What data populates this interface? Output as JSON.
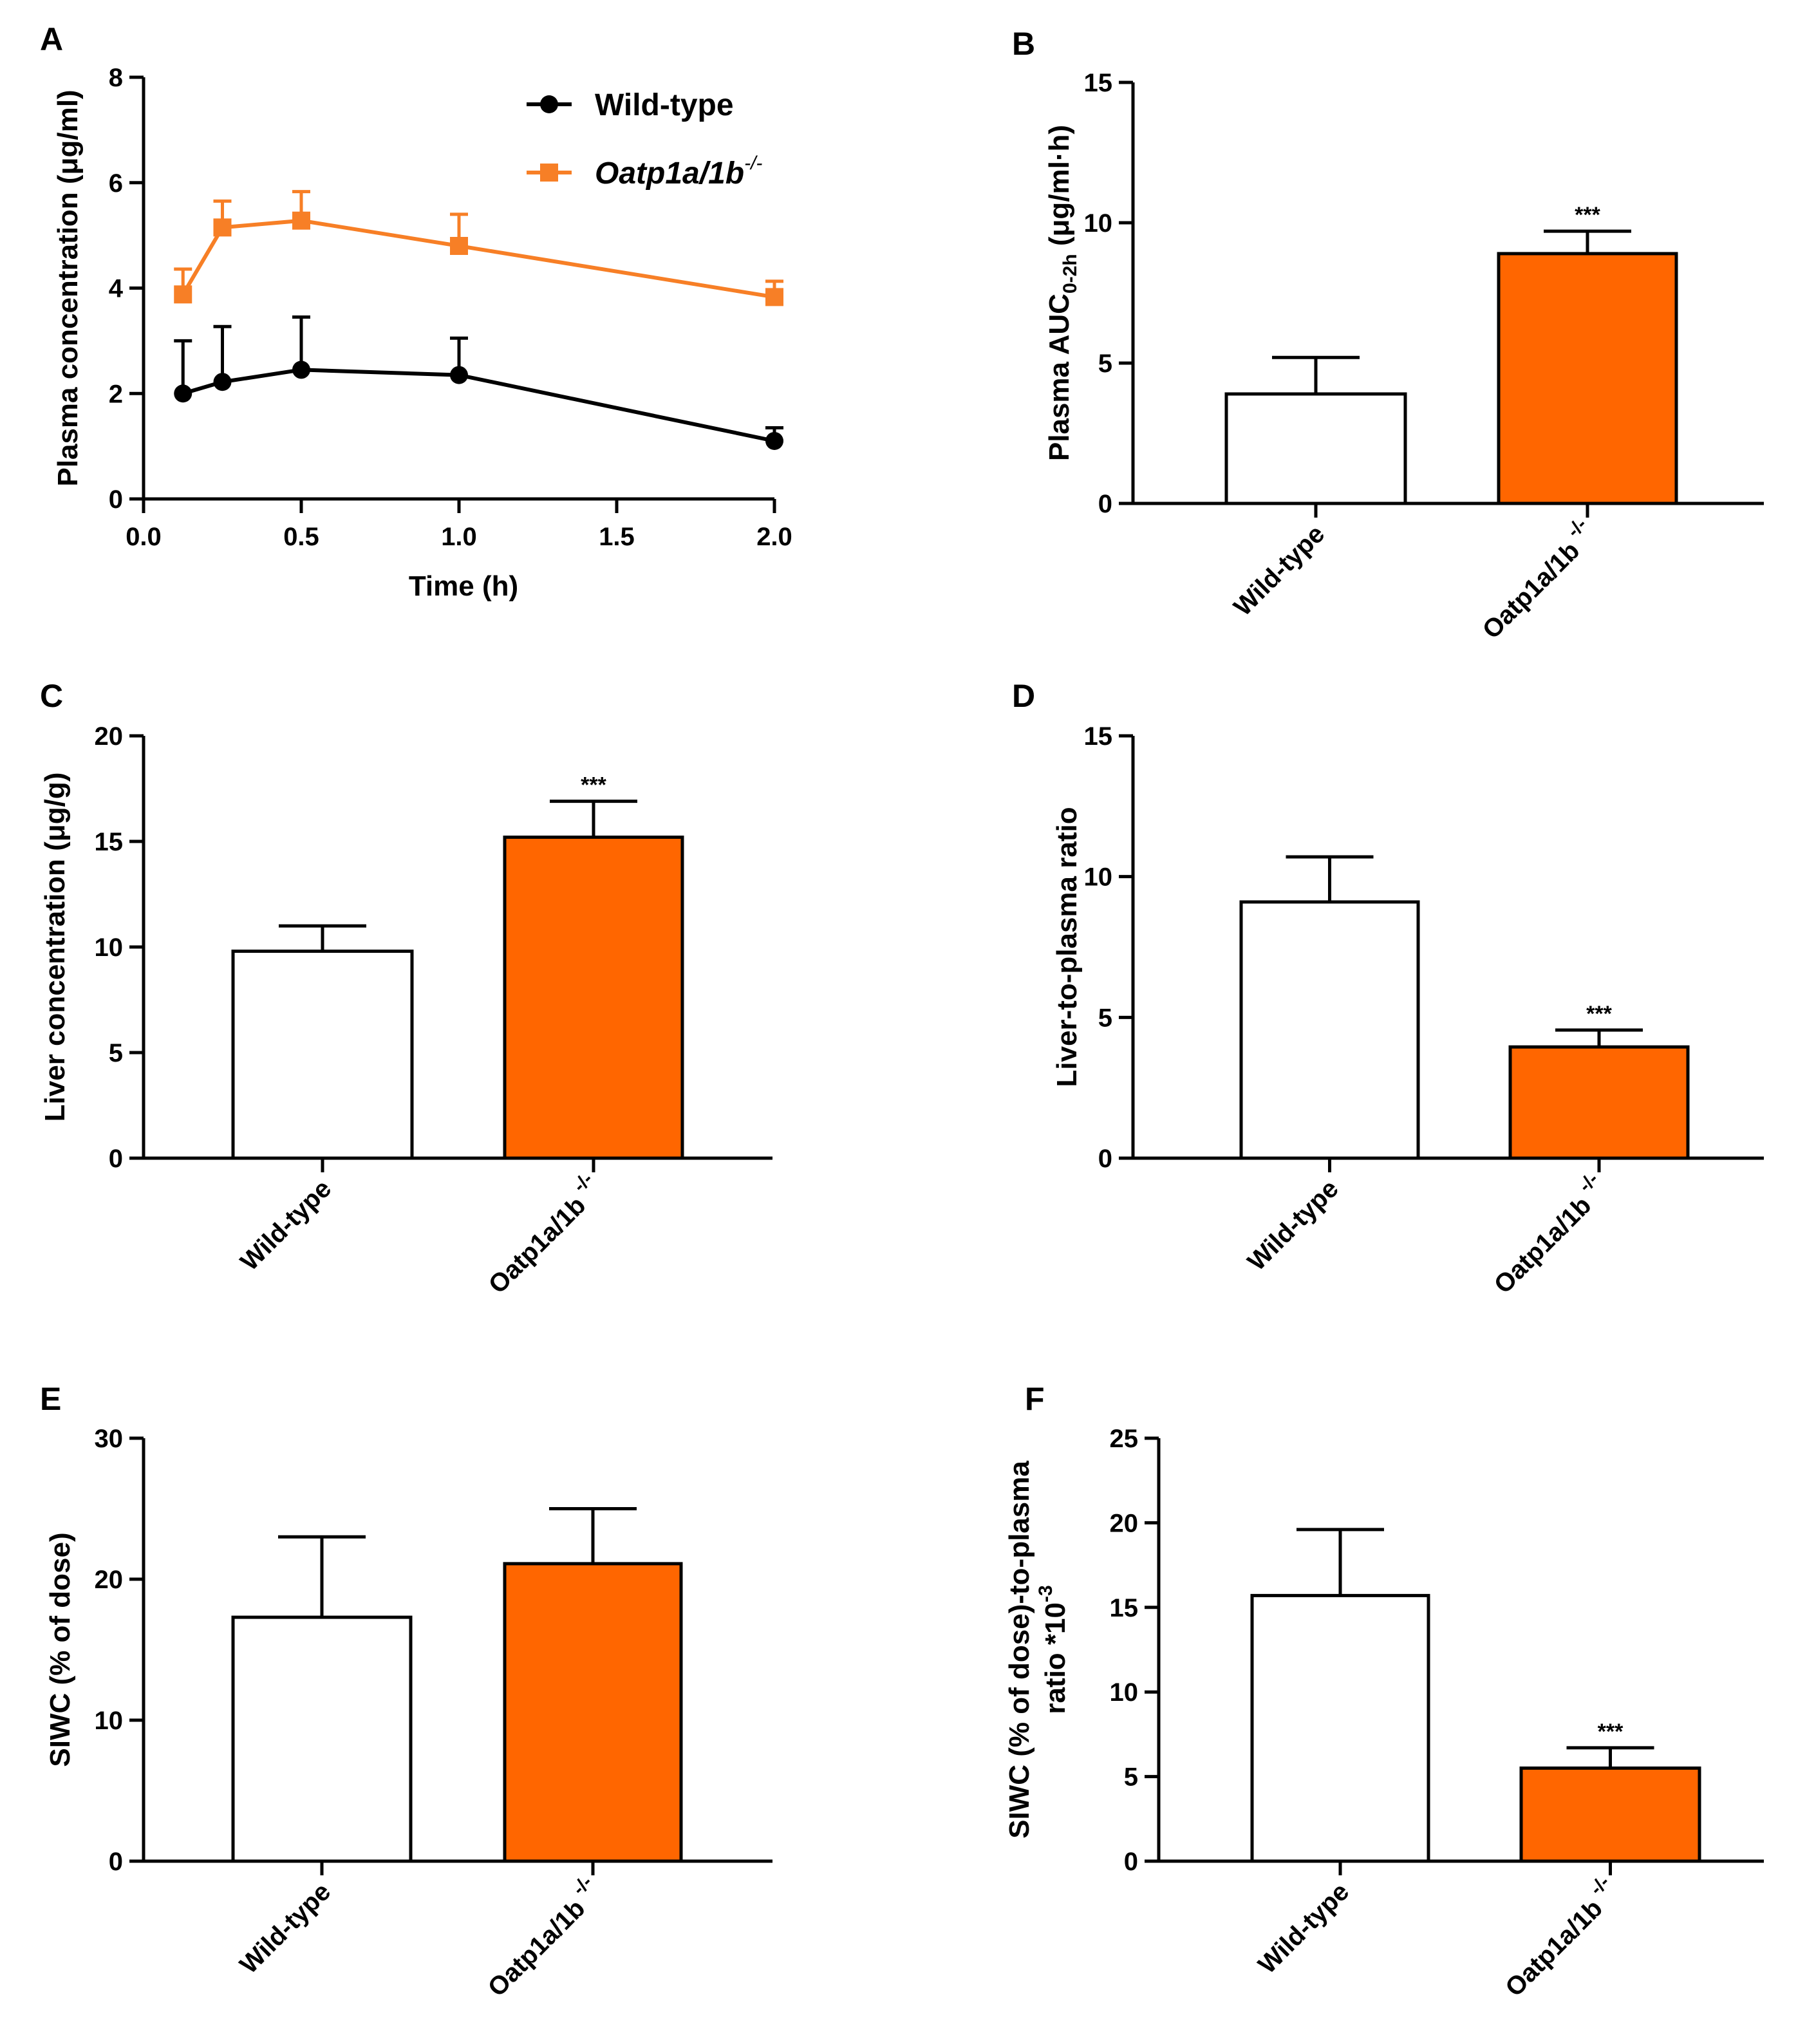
{
  "colors": {
    "orange": "#F77F26",
    "bar_orange": "#FF6600",
    "black": "#000000",
    "white": "#FFFFFF"
  },
  "chart_data": [
    {
      "id": "A",
      "panel_label": "A",
      "type": "line",
      "xlabel": "Time (h)",
      "ylabel": "Plasma concentration (μg/ml)",
      "xlim": [
        0,
        2.0
      ],
      "ylim": [
        0,
        8
      ],
      "xticks": [
        {
          "value": 0,
          "label": "0.0"
        },
        {
          "value": 0.5,
          "label": "0.5"
        },
        {
          "value": 1.0,
          "label": "1.0"
        },
        {
          "value": 1.5,
          "label": "1.5"
        },
        {
          "value": 2.0,
          "label": "2.0"
        }
      ],
      "yticks": [
        {
          "value": 0,
          "label": "0"
        },
        {
          "value": 2,
          "label": "2"
        },
        {
          "value": 4,
          "label": "4"
        },
        {
          "value": 6,
          "label": "6"
        },
        {
          "value": 8,
          "label": "8"
        }
      ],
      "x": [
        0.125,
        0.25,
        0.5,
        1.0,
        2.0
      ],
      "series": [
        {
          "name": "Wild-type",
          "name_italic": false,
          "name_sup": "",
          "color": "#000000",
          "marker": "circle",
          "values": [
            2.0,
            2.22,
            2.45,
            2.35,
            1.1
          ],
          "errors": [
            1.0,
            1.05,
            1.0,
            0.7,
            0.25
          ]
        },
        {
          "name": "Oatp1a/1b",
          "name_italic": true,
          "name_sup": "-/-",
          "color": "#F77F26",
          "marker": "square",
          "values": [
            3.88,
            5.15,
            5.28,
            4.8,
            3.83
          ],
          "errors": [
            0.48,
            0.5,
            0.55,
            0.6,
            0.3
          ]
        }
      ]
    },
    {
      "id": "B",
      "panel_label": "B",
      "type": "bar",
      "ylabel_pre": "Plasma AUC",
      "ylabel_sub": "0-2h",
      "ylabel_post": " (μg/ml·h)",
      "ylim": [
        0,
        15
      ],
      "yticks": [
        {
          "value": 0,
          "label": "0"
        },
        {
          "value": 5,
          "label": "5"
        },
        {
          "value": 10,
          "label": "10"
        },
        {
          "value": 15,
          "label": "15"
        }
      ],
      "categories": [
        {
          "label": "Wild-type",
          "sup": ""
        },
        {
          "label": "Oatp1a/1b",
          "sup": "-/-"
        }
      ],
      "values": [
        3.9,
        8.9
      ],
      "errors": [
        1.3,
        0.8
      ],
      "significance": [
        "",
        "***"
      ],
      "fills": [
        "#FFFFFF",
        "#FF6600"
      ]
    },
    {
      "id": "C",
      "panel_label": "C",
      "type": "bar",
      "ylabel_pre": "Liver concentration (μg/g)",
      "ylabel_sub": "",
      "ylabel_post": "",
      "ylim": [
        0,
        20
      ],
      "yticks": [
        {
          "value": 0,
          "label": "0"
        },
        {
          "value": 5,
          "label": "5"
        },
        {
          "value": 10,
          "label": "10"
        },
        {
          "value": 15,
          "label": "15"
        },
        {
          "value": 20,
          "label": "20"
        }
      ],
      "categories": [
        {
          "label": "Wild-type",
          "sup": ""
        },
        {
          "label": "Oatp1a/1b",
          "sup": "-/-"
        }
      ],
      "values": [
        9.8,
        15.2
      ],
      "errors": [
        1.2,
        1.7
      ],
      "significance": [
        "",
        "***"
      ],
      "fills": [
        "#FFFFFF",
        "#FF6600"
      ]
    },
    {
      "id": "D",
      "panel_label": "D",
      "type": "bar",
      "ylabel_pre": "Liver-to-plasma ratio",
      "ylabel_sub": "",
      "ylabel_post": "",
      "ylim": [
        0,
        15
      ],
      "yticks": [
        {
          "value": 0,
          "label": "0"
        },
        {
          "value": 5,
          "label": "5"
        },
        {
          "value": 10,
          "label": "10"
        },
        {
          "value": 15,
          "label": "15"
        }
      ],
      "categories": [
        {
          "label": "Wild-type",
          "sup": ""
        },
        {
          "label": "Oatp1a/1b",
          "sup": "-/-"
        }
      ],
      "values": [
        9.1,
        3.95
      ],
      "errors": [
        1.6,
        0.6
      ],
      "significance": [
        "",
        "***"
      ],
      "fills": [
        "#FFFFFF",
        "#FF6600"
      ]
    },
    {
      "id": "E",
      "panel_label": "E",
      "type": "bar",
      "ylabel_pre": "SIWC (% of dose)",
      "ylabel_sub": "",
      "ylabel_post": "",
      "ylim": [
        0,
        30
      ],
      "yticks": [
        {
          "value": 0,
          "label": "0"
        },
        {
          "value": 10,
          "label": "10"
        },
        {
          "value": 20,
          "label": "20"
        },
        {
          "value": 30,
          "label": "30"
        }
      ],
      "categories": [
        {
          "label": "Wild-type",
          "sup": ""
        },
        {
          "label": "Oatp1a/1b",
          "sup": "-/-"
        }
      ],
      "values": [
        17.3,
        21.1
      ],
      "errors": [
        5.7,
        3.9
      ],
      "significance": [
        "",
        ""
      ],
      "fills": [
        "#FFFFFF",
        "#FF6600"
      ]
    },
    {
      "id": "F",
      "panel_label": "F",
      "type": "bar",
      "ylabel_line1": "SIWC (% of dose)-to-plasma",
      "ylabel_line2_pre": "ratio *10",
      "ylabel_line2_sup": "-3",
      "ylim": [
        0,
        25
      ],
      "yticks": [
        {
          "value": 0,
          "label": "0"
        },
        {
          "value": 5,
          "label": "5"
        },
        {
          "value": 10,
          "label": "10"
        },
        {
          "value": 15,
          "label": "15"
        },
        {
          "value": 20,
          "label": "20"
        },
        {
          "value": 25,
          "label": "25"
        }
      ],
      "categories": [
        {
          "label": "Wild-type",
          "sup": ""
        },
        {
          "label": "Oatp1a/1b",
          "sup": "-/-"
        }
      ],
      "values": [
        15.7,
        5.5
      ],
      "errors": [
        3.9,
        1.2
      ],
      "significance": [
        "",
        "***"
      ],
      "fills": [
        "#FFFFFF",
        "#FF6600"
      ]
    }
  ]
}
